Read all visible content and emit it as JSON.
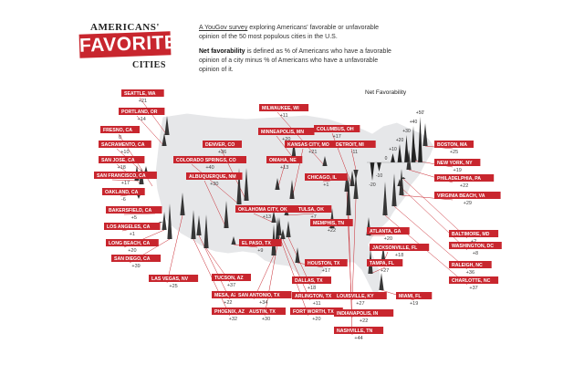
{
  "header": {
    "title_line1": "AMERICANS'",
    "title_main": "FAVORITE",
    "title_line3": "CITIES",
    "survey_link": "A YouGov survey",
    "survey_text": " exploring Americans' favorable or unfavorable opinion of the 50 most populous cities in the U.S.",
    "net_label": "Net favorability",
    "net_text": " is defined as % of Americans who have a favorable opinion of a city minus % of Americans who have a unfavorable opinion of it."
  },
  "colors": {
    "label_bg": "#c8262e",
    "map_fill": "#e6e7e9",
    "spike": "#222222"
  },
  "chart_data": {
    "type": "spike-map",
    "legend": {
      "title": "Net Favorability",
      "values": [
        -20,
        -10,
        0,
        10,
        20,
        30,
        40,
        50
      ],
      "labels": [
        "-20",
        "-10",
        "0",
        "+10",
        "+20",
        "+30",
        "+40",
        "+50'"
      ]
    },
    "cities": [
      {
        "name": "SEATTLE, WA",
        "value": 21
      },
      {
        "name": "PORTLAND, OR",
        "value": 14
      },
      {
        "name": "FRESNO, CA",
        "value": 0
      },
      {
        "name": "SACRAMENTO, CA",
        "value": 10
      },
      {
        "name": "SAN JOSE, CA",
        "value": 18
      },
      {
        "name": "SAN FRANCISCO, CA",
        "value": 17
      },
      {
        "name": "OAKLAND, CA",
        "value": -6
      },
      {
        "name": "BAKERSFIELD, CA",
        "value": 5
      },
      {
        "name": "LOS ANGELES, CA",
        "value": 1
      },
      {
        "name": "LONG BEACH, CA",
        "value": 20
      },
      {
        "name": "SAN DIEGO, CA",
        "value": 39
      },
      {
        "name": "LAS VEGAS, NV",
        "value": 25
      },
      {
        "name": "DENVER, CO",
        "value": 36
      },
      {
        "name": "COLORADO SPRINGS, CO",
        "value": 40
      },
      {
        "name": "ALBUQUERQUE, NM",
        "value": 30
      },
      {
        "name": "TUCSON, AZ",
        "value": 37
      },
      {
        "name": "MESA, AZ",
        "value": 22
      },
      {
        "name": "PHOENIX, AZ",
        "value": 32
      },
      {
        "name": "EL PASO, TX",
        "value": 9
      },
      {
        "name": "SAN ANTONIO, TX",
        "value": 34
      },
      {
        "name": "AUSTIN, TX",
        "value": 30
      },
      {
        "name": "OKLAHOMA CITY, OK",
        "value": 13
      },
      {
        "name": "TULSA, OK",
        "value": 7
      },
      {
        "name": "MILWAUKEE, WI",
        "value": 11
      },
      {
        "name": "MINNEAPOLIS, MN",
        "value": 20
      },
      {
        "name": "KANSAS CITY, MO",
        "value": 21
      },
      {
        "name": "OMAHA, NE",
        "value": 13
      },
      {
        "name": "COLUMBUS, OH",
        "value": 17
      },
      {
        "name": "DETROIT, MI",
        "value": -11
      },
      {
        "name": "CHICAGO, IL",
        "value": 1
      },
      {
        "name": "MEMPHIS, TN",
        "value": 22
      },
      {
        "name": "HOUSTON, TX",
        "value": 17
      },
      {
        "name": "DALLAS, TX",
        "value": 18
      },
      {
        "name": "ARLINGTON, TX",
        "value": 11
      },
      {
        "name": "FORT WORTH, TX",
        "value": 20
      },
      {
        "name": "ATLANTA, GA",
        "value": 20
      },
      {
        "name": "JACKSONVILLE, FL",
        "value": 18
      },
      {
        "name": "TAMPA, FL",
        "value": 27
      },
      {
        "name": "MIAMI, FL",
        "value": 19
      },
      {
        "name": "LOUISVILLE, KY",
        "value": 27
      },
      {
        "name": "INDIANAPOLIS, IN",
        "value": 22
      },
      {
        "name": "NASHVILLE, TN",
        "value": 44
      },
      {
        "name": "BOSTON, MA",
        "value": 25
      },
      {
        "name": "NEW YORK, NY",
        "value": 19
      },
      {
        "name": "PHILADELPHIA, PA",
        "value": 22
      },
      {
        "name": "VIRGINIA BEACH, VA",
        "value": 29
      },
      {
        "name": "BALTIMORE, MD",
        "value": 2
      },
      {
        "name": "WASHINGTON, DC",
        "value": 8
      },
      {
        "name": "RALEIGH, NC",
        "value": 36
      },
      {
        "name": "CHARLOTTE, NC",
        "value": 37
      }
    ]
  }
}
